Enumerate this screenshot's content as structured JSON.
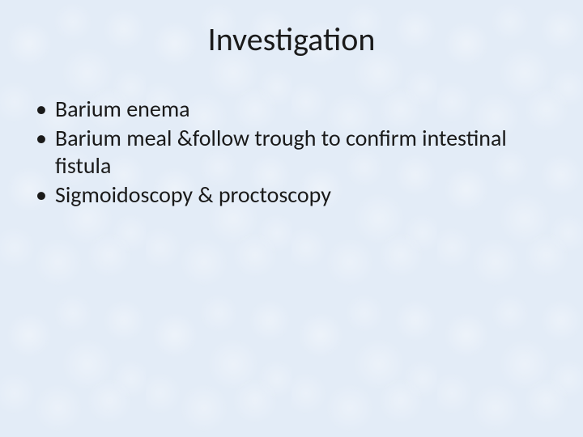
{
  "slide": {
    "title": "Investigation",
    "title_fontsize": 40,
    "title_color": "#1a1a1a",
    "title_weight": 400,
    "bullets": [
      "Barium enema",
      "Barium meal &follow trough to confirm intestinal fistula",
      "Sigmoidoscopy & proctoscopy"
    ],
    "bullet_fontsize": 28,
    "bullet_color": "#1a1a1a",
    "bullet_lineheight": 1.22,
    "background_color": "#e3ecf7"
  }
}
